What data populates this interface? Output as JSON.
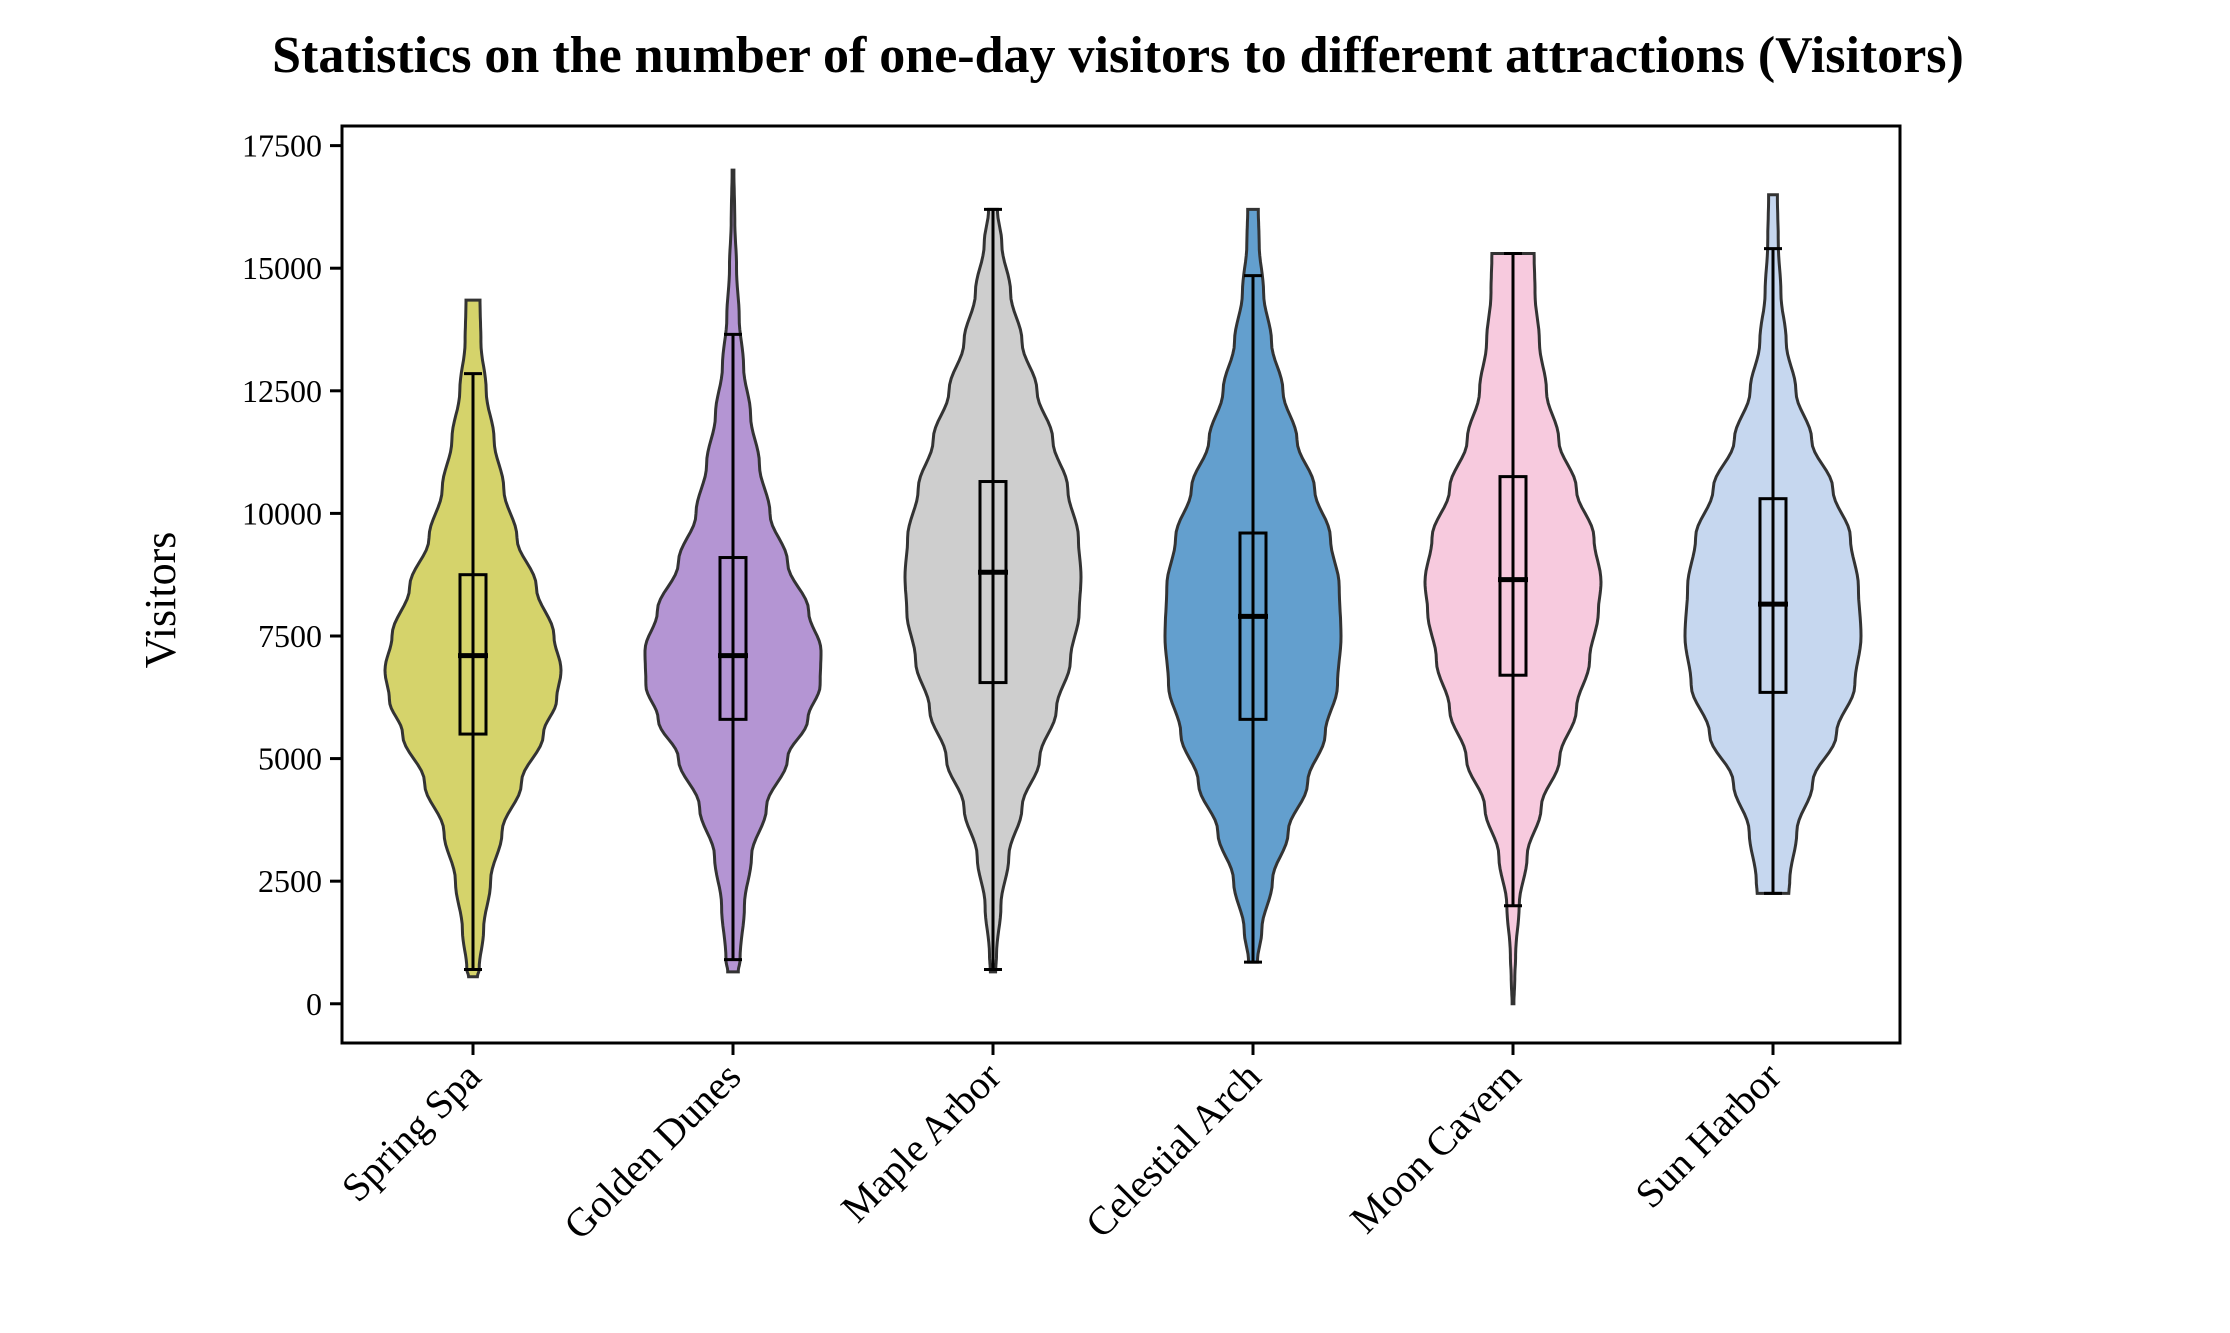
{
  "chart_data": {
    "type": "violin",
    "title": "Statistics on the number of one-day visitors to different attractions (Visitors)",
    "xlabel": "",
    "ylabel": "Visitors",
    "ylim": [
      -800,
      17900
    ],
    "yticks": [
      0,
      2500,
      5000,
      7500,
      10000,
      12500,
      15000,
      17500
    ],
    "grid": false,
    "categories": [
      "Spring Spa",
      "Golden Dunes",
      "Maple Arbor",
      "Celestial Arch",
      "Moon Cavern",
      "Sun Harbor"
    ],
    "series": [
      {
        "category": "Spring Spa",
        "color": "#c7c43a",
        "whisker_low": 700,
        "q1": 5500,
        "median": 7100,
        "q3": 8750,
        "whisker_high": 12850,
        "kde_profile": [
          [
            550,
            0.05
          ],
          [
            700,
            0.07
          ],
          [
            1500,
            0.12
          ],
          [
            2500,
            0.2
          ],
          [
            3500,
            0.33
          ],
          [
            4500,
            0.55
          ],
          [
            5500,
            0.8
          ],
          [
            6200,
            0.95
          ],
          [
            6800,
            1.0
          ],
          [
            7500,
            0.92
          ],
          [
            8500,
            0.72
          ],
          [
            9500,
            0.5
          ],
          [
            10500,
            0.35
          ],
          [
            11500,
            0.24
          ],
          [
            12500,
            0.15
          ],
          [
            13500,
            0.09
          ],
          [
            14300,
            0.08
          ],
          [
            14350,
            0.08
          ]
        ]
      },
      {
        "category": "Golden Dunes",
        "color": "#9b72c4",
        "whisker_low": 900,
        "q1": 5800,
        "median": 7100,
        "q3": 9100,
        "whisker_high": 13650,
        "kde_profile": [
          [
            650,
            0.06
          ],
          [
            900,
            0.08
          ],
          [
            2000,
            0.13
          ],
          [
            3000,
            0.21
          ],
          [
            4000,
            0.38
          ],
          [
            5000,
            0.62
          ],
          [
            5800,
            0.85
          ],
          [
            6500,
            0.99
          ],
          [
            7200,
            1.0
          ],
          [
            8000,
            0.86
          ],
          [
            9000,
            0.62
          ],
          [
            10000,
            0.42
          ],
          [
            11000,
            0.3
          ],
          [
            12000,
            0.2
          ],
          [
            13000,
            0.12
          ],
          [
            14000,
            0.07
          ],
          [
            15000,
            0.04
          ],
          [
            16000,
            0.02
          ],
          [
            17000,
            0.01
          ]
        ]
      },
      {
        "category": "Maple Arbor",
        "color": "#bdbdbd",
        "whisker_low": 700,
        "q1": 6550,
        "median": 8800,
        "q3": 10650,
        "whisker_high": 16200,
        "kde_profile": [
          [
            650,
            0.03
          ],
          [
            1000,
            0.04
          ],
          [
            2000,
            0.09
          ],
          [
            3000,
            0.18
          ],
          [
            4000,
            0.33
          ],
          [
            5000,
            0.53
          ],
          [
            6000,
            0.72
          ],
          [
            7000,
            0.88
          ],
          [
            8000,
            0.98
          ],
          [
            8700,
            1.0
          ],
          [
            9500,
            0.97
          ],
          [
            10500,
            0.85
          ],
          [
            11500,
            0.68
          ],
          [
            12500,
            0.5
          ],
          [
            13500,
            0.33
          ],
          [
            14500,
            0.2
          ],
          [
            15500,
            0.1
          ],
          [
            16200,
            0.05
          ]
        ]
      },
      {
        "category": "Celestial Arch",
        "color": "#2f7fbd",
        "whisker_low": 850,
        "q1": 5800,
        "median": 7900,
        "q3": 9600,
        "whisker_high": 14850,
        "kde_profile": [
          [
            850,
            0.05
          ],
          [
            1500,
            0.1
          ],
          [
            2500,
            0.22
          ],
          [
            3500,
            0.4
          ],
          [
            4500,
            0.62
          ],
          [
            5500,
            0.82
          ],
          [
            6500,
            0.96
          ],
          [
            7500,
            1.0
          ],
          [
            8500,
            0.98
          ],
          [
            9500,
            0.88
          ],
          [
            10500,
            0.7
          ],
          [
            11500,
            0.5
          ],
          [
            12500,
            0.34
          ],
          [
            13500,
            0.21
          ],
          [
            14500,
            0.12
          ],
          [
            15500,
            0.07
          ],
          [
            16200,
            0.06
          ]
        ]
      },
      {
        "category": "Moon Cavern",
        "color": "#f4b8d3",
        "whisker_low": 2000,
        "q1": 6700,
        "median": 8650,
        "q3": 10750,
        "whisker_high": 15300,
        "kde_profile": [
          [
            0,
            0.01
          ],
          [
            500,
            0.02
          ],
          [
            1000,
            0.03
          ],
          [
            2000,
            0.07
          ],
          [
            3000,
            0.16
          ],
          [
            4000,
            0.32
          ],
          [
            5000,
            0.53
          ],
          [
            6000,
            0.72
          ],
          [
            7000,
            0.87
          ],
          [
            8000,
            0.97
          ],
          [
            8600,
            1.0
          ],
          [
            9500,
            0.92
          ],
          [
            10500,
            0.72
          ],
          [
            11500,
            0.52
          ],
          [
            12500,
            0.38
          ],
          [
            13500,
            0.3
          ],
          [
            14500,
            0.25
          ],
          [
            15300,
            0.24
          ]
        ]
      },
      {
        "category": "Sun Harbor",
        "color": "#b3c9ea",
        "whisker_low": 2250,
        "q1": 6350,
        "median": 8150,
        "q3": 10300,
        "whisker_high": 15400,
        "kde_profile": [
          [
            2250,
            0.18
          ],
          [
            2500,
            0.19
          ],
          [
            3500,
            0.27
          ],
          [
            4500,
            0.45
          ],
          [
            5500,
            0.72
          ],
          [
            6500,
            0.93
          ],
          [
            7500,
            1.0
          ],
          [
            8500,
            0.97
          ],
          [
            9500,
            0.88
          ],
          [
            10500,
            0.68
          ],
          [
            11500,
            0.44
          ],
          [
            12500,
            0.26
          ],
          [
            13500,
            0.15
          ],
          [
            14500,
            0.09
          ],
          [
            15500,
            0.06
          ],
          [
            16500,
            0.05
          ]
        ]
      }
    ]
  }
}
